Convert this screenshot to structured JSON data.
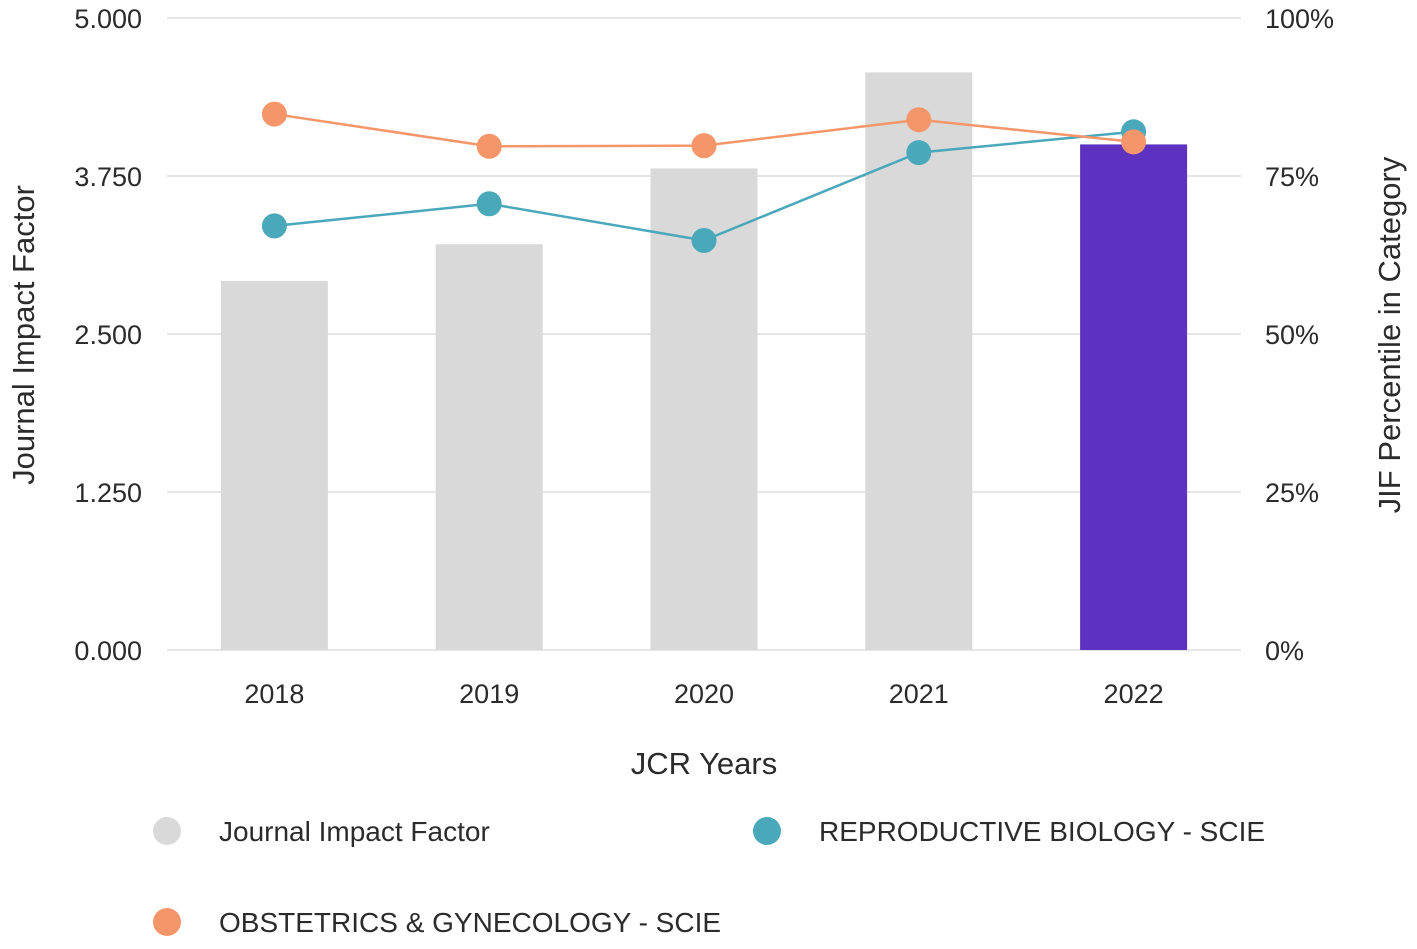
{
  "chart_data": {
    "type": "bar",
    "categories": [
      "2018",
      "2019",
      "2020",
      "2021",
      "2022"
    ],
    "series": [
      {
        "name": "Journal Impact Factor",
        "type": "bar",
        "axis": "left",
        "values": [
          2.92,
          3.21,
          3.81,
          4.57,
          4.0
        ],
        "color": "#d9d9d9",
        "highlight_color": "#5e32c0",
        "highlight_category": "2022"
      },
      {
        "name": "REPRODUCTIVE BIOLOGY - SCIE",
        "type": "line",
        "axis": "right",
        "values": [
          67.1,
          70.6,
          64.8,
          78.7,
          82.0
        ],
        "color": "#4aa8bb"
      },
      {
        "name": "OBSTETRICS & GYNECOLOGY - SCIE",
        "type": "line",
        "axis": "right",
        "values": [
          84.8,
          79.7,
          79.8,
          83.9,
          80.4
        ],
        "color": "#f5956a"
      }
    ],
    "xlabel": "JCR Years",
    "ylabel": "Journal Impact Factor",
    "y2label": "JIF Percentile in Category",
    "ylim": [
      0,
      5
    ],
    "y2lim": [
      0,
      100
    ],
    "yticks": [
      "0.000",
      "1.250",
      "2.500",
      "3.750",
      "5.000"
    ],
    "y2ticks": [
      "0%",
      "25%",
      "50%",
      "75%",
      "100%"
    ],
    "grid": true,
    "legend_position": "bottom"
  }
}
